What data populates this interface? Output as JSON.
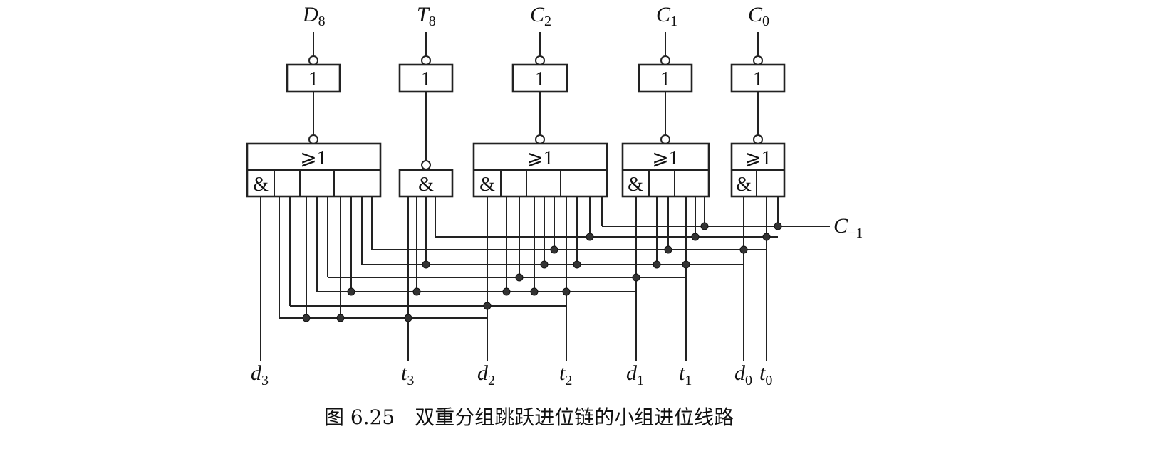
{
  "diagram": {
    "caption": "图 6.25　双重分组跳跃进位链的小组进位线路",
    "gate_symbols": {
      "not": "1",
      "or": "⩾1",
      "and": "&"
    },
    "top_signals": [
      {
        "base": "D",
        "sub": "8"
      },
      {
        "base": "T",
        "sub": "8"
      },
      {
        "base": "C",
        "sub": "2"
      },
      {
        "base": "C",
        "sub": "1"
      },
      {
        "base": "C",
        "sub": "0"
      }
    ],
    "bottom_inputs": [
      {
        "base": "d",
        "sub": "3"
      },
      {
        "base": "t",
        "sub": "3"
      },
      {
        "base": "d",
        "sub": "2"
      },
      {
        "base": "t",
        "sub": "2"
      },
      {
        "base": "d",
        "sub": "1"
      },
      {
        "base": "t",
        "sub": "1"
      },
      {
        "base": "d",
        "sub": "0"
      },
      {
        "base": "t",
        "sub": "0"
      }
    ],
    "carry_in": {
      "base": "C",
      "sub": "−1"
    }
  }
}
